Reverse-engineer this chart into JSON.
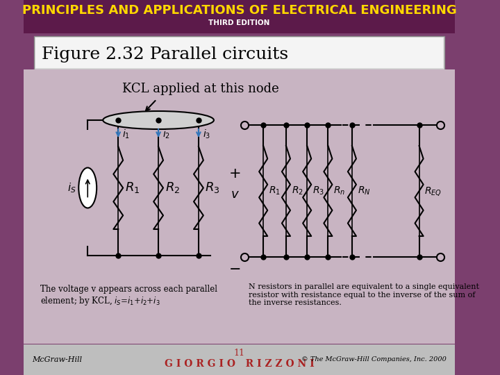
{
  "title_main": "PRINCIPLES AND APPLICATIONS OF ELECTRICAL ENGINEERING",
  "title_sub": "THIRD EDITION",
  "figure_title": "Figure 2.32 Parallel circuits",
  "kcl_label": "KCL applied at this node",
  "footer_left": "McGraw-Hill",
  "footer_center": "G I O R G I O   R I Z Z O N I",
  "footer_page": "11",
  "footer_right": "© The McGraw-Hill Companies, Inc. 2000",
  "bg_color": "#7B3F6E",
  "header_bg": "#5C1A4A",
  "footer_bg": "#BEBEBE",
  "title_color": "#FFD700",
  "sub_color": "#FFFFFF",
  "body_bg": "#C8B4C2",
  "figure_box_color": "#DCDCDC"
}
